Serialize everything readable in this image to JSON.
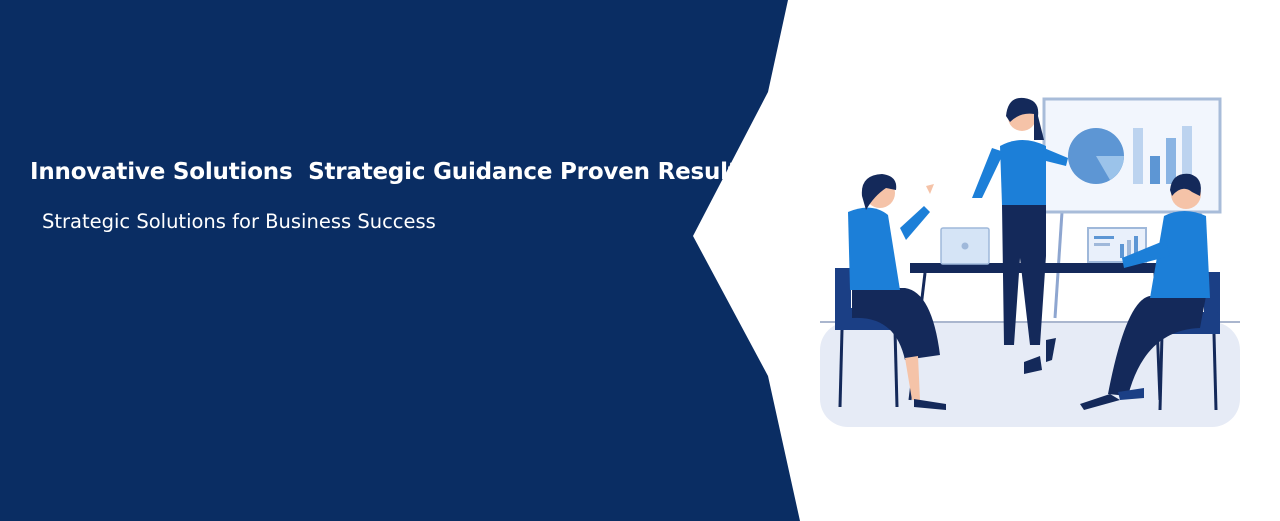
{
  "hero": {
    "headline": "Innovative Solutions  Strategic Guidance Proven Results!",
    "subheadline": "Strategic Solutions for Business Success",
    "colors": {
      "panel": "#0a2d63",
      "accent": "#1c7fd8",
      "navy": "#14295a",
      "light": "#e6ebf6"
    }
  },
  "illustration": {
    "icons": [
      "presenter-icon",
      "whiteboard-pie-chart-icon",
      "laptop-icon",
      "chart-monitor-icon",
      "team-member-icon"
    ]
  }
}
